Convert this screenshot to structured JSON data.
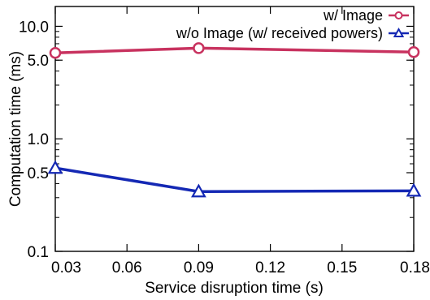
{
  "chart_data": {
    "type": "line",
    "xlabel": "Service disruption time (s)",
    "ylabel": "Computation time (ms)",
    "x_ticks": [
      0.03,
      0.06,
      0.09,
      0.12,
      0.15,
      0.18
    ],
    "x_tick_labels": [
      "0.03",
      "0.06",
      "0.09",
      "0.12",
      "0.15",
      "0.18"
    ],
    "y_ticks": [
      0.1,
      0.5,
      1.0,
      5.0,
      10.0
    ],
    "y_tick_labels": [
      "0.1",
      "0.5",
      "1.0",
      "5.0",
      "10.0"
    ],
    "xlim": [
      0.03,
      0.18
    ],
    "ylim": [
      0.1,
      15
    ],
    "y_scale": "log",
    "grid": false,
    "legend_position": "top-right",
    "series": [
      {
        "name": "w/ Image",
        "color": "#c8325f",
        "marker": "circle",
        "x": [
          0.03,
          0.09,
          0.18
        ],
        "y": [
          5.8,
          6.4,
          5.9
        ]
      },
      {
        "name": "w/o Image (w/ received powers)",
        "color": "#1428b4",
        "marker": "triangle",
        "x": [
          0.03,
          0.09,
          0.18
        ],
        "y": [
          0.55,
          0.34,
          0.345
        ]
      }
    ]
  }
}
